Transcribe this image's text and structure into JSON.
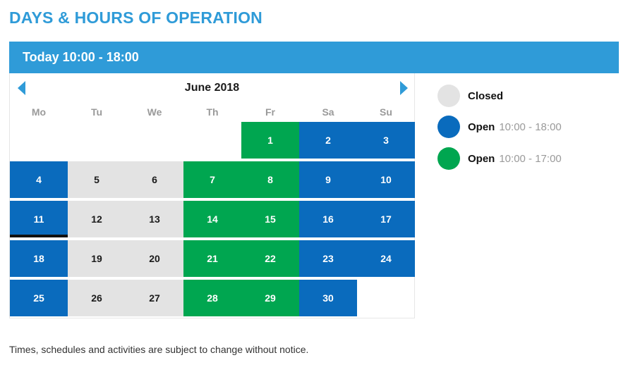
{
  "header": {
    "title": "DAYS & HOURS OF OPERATION"
  },
  "today": {
    "text": "Today 10:00 - 18:00"
  },
  "calendar": {
    "month_label": "June 2018",
    "weekdays": [
      "Mo",
      "Tu",
      "We",
      "Th",
      "Fr",
      "Sa",
      "Su"
    ],
    "first_weekday_index": 4,
    "today": 11,
    "days": [
      {
        "day": "1",
        "status": "open2"
      },
      {
        "day": "2",
        "status": "open1"
      },
      {
        "day": "3",
        "status": "open1"
      },
      {
        "day": "4",
        "status": "open1"
      },
      {
        "day": "5",
        "status": "closed"
      },
      {
        "day": "6",
        "status": "closed"
      },
      {
        "day": "7",
        "status": "open2"
      },
      {
        "day": "8",
        "status": "open2"
      },
      {
        "day": "9",
        "status": "open1"
      },
      {
        "day": "10",
        "status": "open1"
      },
      {
        "day": "11",
        "status": "open1"
      },
      {
        "day": "12",
        "status": "closed"
      },
      {
        "day": "13",
        "status": "closed"
      },
      {
        "day": "14",
        "status": "open2"
      },
      {
        "day": "15",
        "status": "open2"
      },
      {
        "day": "16",
        "status": "open1"
      },
      {
        "day": "17",
        "status": "open1"
      },
      {
        "day": "18",
        "status": "open1"
      },
      {
        "day": "19",
        "status": "closed"
      },
      {
        "day": "20",
        "status": "closed"
      },
      {
        "day": "21",
        "status": "open2"
      },
      {
        "day": "22",
        "status": "open2"
      },
      {
        "day": "23",
        "status": "open1"
      },
      {
        "day": "24",
        "status": "open1"
      },
      {
        "day": "25",
        "status": "open1"
      },
      {
        "day": "26",
        "status": "closed"
      },
      {
        "day": "27",
        "status": "closed"
      },
      {
        "day": "28",
        "status": "open2"
      },
      {
        "day": "29",
        "status": "open2"
      },
      {
        "day": "30",
        "status": "open1"
      }
    ]
  },
  "legend": {
    "closed": {
      "label": "Closed",
      "color": "#e3e3e3"
    },
    "open1": {
      "label": "Open",
      "hours": "10:00 - 18:00",
      "color": "#0a6bbd"
    },
    "open2": {
      "label": "Open",
      "hours": "10:00 - 17:00",
      "color": "#00a650"
    }
  },
  "footnote": "Times, schedules and activities are subject to change without notice.",
  "colors": {
    "accent": "#2f9bd8",
    "open_long": "#0a6bbd",
    "open_short": "#00a650",
    "closed": "#e3e3e3"
  }
}
